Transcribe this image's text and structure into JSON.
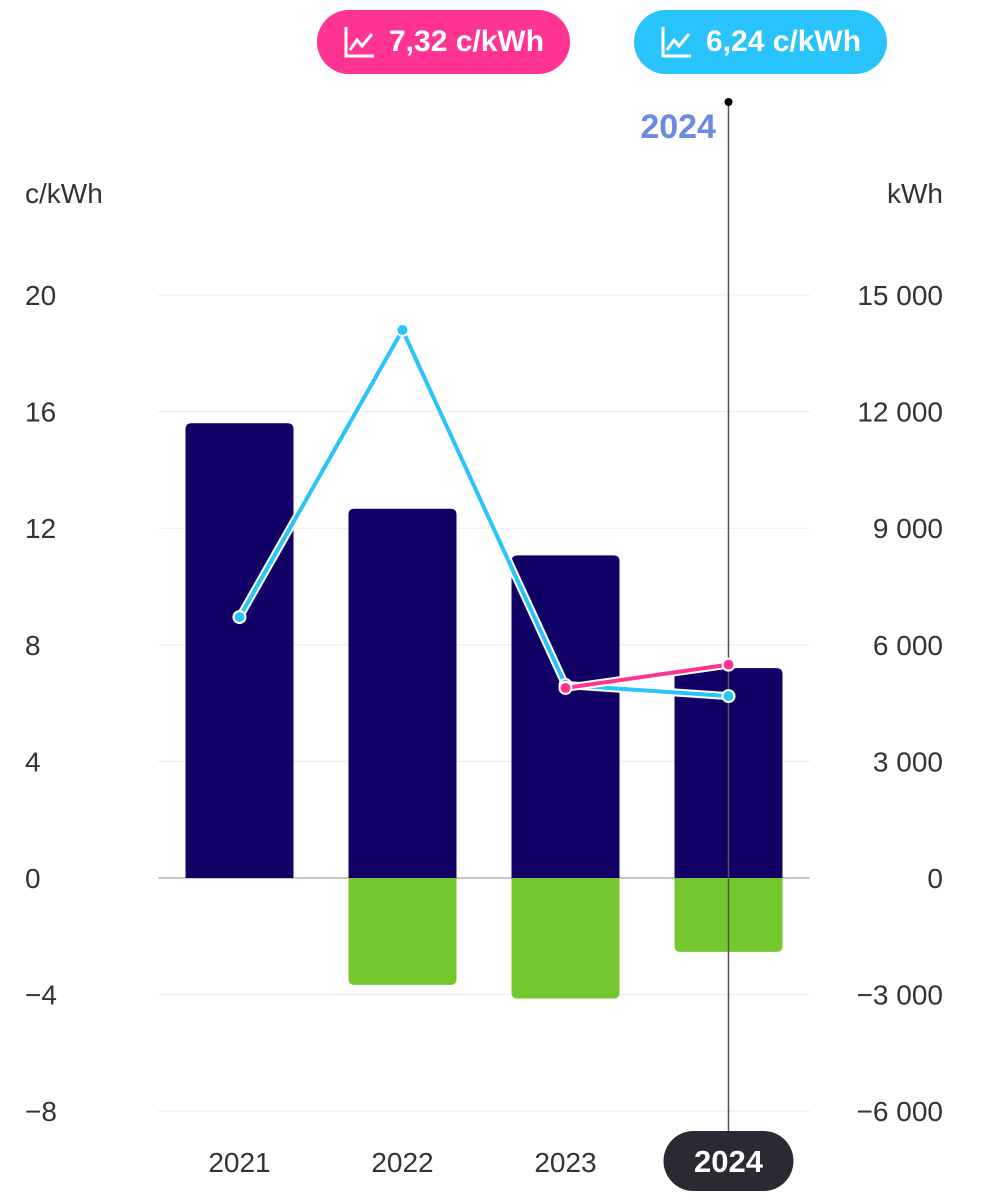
{
  "badges": [
    {
      "label": "7,32 c/kWh",
      "icon": "line-chart-icon",
      "color": "#ff3391"
    },
    {
      "label": "6,24 c/kWh",
      "icon": "line-chart-icon",
      "color": "#29c4fb"
    }
  ],
  "chart_data": {
    "type": "bar",
    "categories": [
      "2021",
      "2022",
      "2023",
      "2024"
    ],
    "selected_category": "2024",
    "selected_label": "2024",
    "left_axis": {
      "label": "c/kWh",
      "ylim": [
        -8,
        20
      ],
      "ticks": [
        "20",
        "16",
        "12",
        "8",
        "4",
        "0",
        "−4",
        "−8"
      ]
    },
    "right_axis": {
      "label": "kWh",
      "ylim": [
        -6000,
        15000
      ],
      "ticks": [
        "15 000",
        "12 000",
        "9 000",
        "6 000",
        "3 000",
        "0",
        "−3 000",
        "−6 000"
      ]
    },
    "grid": true,
    "bar_series": [
      {
        "axis": "right",
        "color": "#110066",
        "values": [
          11700,
          9500,
          8300,
          5400
        ]
      },
      {
        "axis": "right",
        "color": "#74c82e",
        "values": [
          0,
          -2750,
          -3100,
          -1900
        ]
      }
    ],
    "line_series": [
      {
        "axis": "left",
        "color": "#29c4fb",
        "values": [
          8.95,
          18.8,
          6.62,
          6.24
        ]
      },
      {
        "axis": "left",
        "color": "#ff3391",
        "values": [
          null,
          null,
          6.52,
          7.32
        ]
      }
    ]
  }
}
